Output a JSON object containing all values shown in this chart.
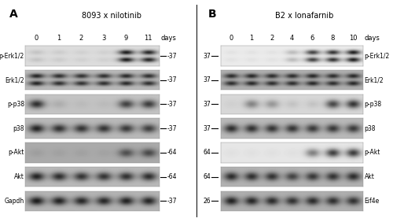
{
  "panel_A": {
    "title": "8093 x nilotinib",
    "label": "A",
    "days": [
      "0",
      "1",
      "2",
      "3",
      "9",
      "11"
    ],
    "blots": [
      {
        "name": "p-Erk1/2",
        "mw": "-37",
        "mw_side": "right",
        "bg": 220,
        "bands": [
          [
            0,
            0.12,
            true
          ],
          [
            1,
            0.08,
            true
          ],
          [
            2,
            0.06,
            true
          ],
          [
            3,
            0.06,
            true
          ],
          [
            4,
            0.95,
            true
          ],
          [
            5,
            0.9,
            true
          ]
        ]
      },
      {
        "name": "Erk1/2",
        "mw": "-37",
        "mw_side": "right",
        "bg": 185,
        "bands": [
          [
            0,
            0.88,
            true
          ],
          [
            1,
            0.82,
            true
          ],
          [
            2,
            0.8,
            true
          ],
          [
            3,
            0.82,
            true
          ],
          [
            4,
            0.85,
            true
          ],
          [
            5,
            0.82,
            true
          ]
        ]
      },
      {
        "name": "p-p38",
        "mw": "-37",
        "mw_side": "right",
        "bg": 195,
        "bands": [
          [
            0,
            0.82,
            false
          ],
          [
            1,
            0.12,
            false
          ],
          [
            2,
            0.05,
            false
          ],
          [
            3,
            0.05,
            false
          ],
          [
            4,
            0.72,
            false
          ],
          [
            5,
            0.75,
            false
          ]
        ]
      },
      {
        "name": "p38",
        "mw": "-37",
        "mw_side": "right",
        "bg": 185,
        "bands": [
          [
            0,
            0.88,
            false
          ],
          [
            1,
            0.8,
            false
          ],
          [
            2,
            0.78,
            false
          ],
          [
            3,
            0.78,
            false
          ],
          [
            4,
            0.75,
            false
          ],
          [
            5,
            0.72,
            false
          ]
        ]
      },
      {
        "name": "p-Akt",
        "mw": "-64",
        "mw_side": "right",
        "bg": 170,
        "bands": [
          [
            0,
            0.08,
            false
          ],
          [
            1,
            0.06,
            false
          ],
          [
            2,
            0.06,
            false
          ],
          [
            3,
            0.05,
            false
          ],
          [
            4,
            0.58,
            false
          ],
          [
            5,
            0.62,
            false
          ]
        ]
      },
      {
        "name": "Akt",
        "mw": "-64",
        "mw_side": "right",
        "bg": 185,
        "bands": [
          [
            0,
            0.88,
            false
          ],
          [
            1,
            0.82,
            false
          ],
          [
            2,
            0.78,
            false
          ],
          [
            3,
            0.78,
            false
          ],
          [
            4,
            0.8,
            false
          ],
          [
            5,
            0.82,
            false
          ]
        ]
      },
      {
        "name": "Gapdh",
        "mw": "-37",
        "mw_side": "right",
        "bg": 180,
        "bands": [
          [
            0,
            0.92,
            false
          ],
          [
            1,
            0.88,
            false
          ],
          [
            2,
            0.85,
            false
          ],
          [
            3,
            0.85,
            false
          ],
          [
            4,
            0.88,
            false
          ],
          [
            5,
            0.86,
            false
          ]
        ]
      }
    ]
  },
  "panel_B": {
    "title": "B2 x lonafarnib",
    "label": "B",
    "days": [
      "0",
      "1",
      "2",
      "4",
      "6",
      "8",
      "10"
    ],
    "blots": [
      {
        "name": "p-Erk1/2",
        "mw": "37",
        "mw_side": "both",
        "bg": 235,
        "bands": [
          [
            0,
            0.04,
            true
          ],
          [
            1,
            0.04,
            true
          ],
          [
            2,
            0.04,
            true
          ],
          [
            3,
            0.22,
            true
          ],
          [
            4,
            0.78,
            true
          ],
          [
            5,
            0.85,
            true
          ],
          [
            6,
            0.95,
            true
          ]
        ]
      },
      {
        "name": "Erk1/2",
        "mw": "37",
        "mw_side": "both",
        "bg": 175,
        "bands": [
          [
            0,
            0.82,
            true
          ],
          [
            1,
            0.85,
            true
          ],
          [
            2,
            0.82,
            true
          ],
          [
            3,
            0.82,
            true
          ],
          [
            4,
            0.85,
            true
          ],
          [
            5,
            0.82,
            true
          ],
          [
            6,
            0.85,
            true
          ]
        ]
      },
      {
        "name": "p-p38",
        "mw": "37",
        "mw_side": "both",
        "bg": 215,
        "bands": [
          [
            0,
            0.04,
            false
          ],
          [
            1,
            0.42,
            false
          ],
          [
            2,
            0.32,
            false
          ],
          [
            3,
            0.1,
            false
          ],
          [
            4,
            0.1,
            false
          ],
          [
            5,
            0.72,
            false
          ],
          [
            6,
            0.82,
            false
          ]
        ]
      },
      {
        "name": "p38",
        "mw": "37",
        "mw_side": "both",
        "bg": 185,
        "bands": [
          [
            0,
            0.82,
            false
          ],
          [
            1,
            0.8,
            false
          ],
          [
            2,
            0.78,
            false
          ],
          [
            3,
            0.78,
            false
          ],
          [
            4,
            0.75,
            false
          ],
          [
            5,
            0.76,
            false
          ],
          [
            6,
            0.75,
            false
          ]
        ]
      },
      {
        "name": "p-Akt",
        "mw": "64",
        "mw_side": "both",
        "bg": 230,
        "bands": [
          [
            0,
            0.03,
            false
          ],
          [
            1,
            0.03,
            false
          ],
          [
            2,
            0.03,
            false
          ],
          [
            3,
            0.03,
            false
          ],
          [
            4,
            0.48,
            false
          ],
          [
            5,
            0.78,
            false
          ],
          [
            6,
            0.8,
            false
          ]
        ]
      },
      {
        "name": "Akt",
        "mw": "64",
        "mw_side": "both",
        "bg": 178,
        "bands": [
          [
            0,
            0.82,
            false
          ],
          [
            1,
            0.8,
            false
          ],
          [
            2,
            0.78,
            false
          ],
          [
            3,
            0.68,
            false
          ],
          [
            4,
            0.75,
            false
          ],
          [
            5,
            0.78,
            false
          ],
          [
            6,
            0.82,
            false
          ]
        ]
      },
      {
        "name": "Eif4e",
        "mw": "26",
        "mw_side": "both",
        "bg": 175,
        "bands": [
          [
            0,
            0.88,
            false
          ],
          [
            1,
            0.85,
            false
          ],
          [
            2,
            0.82,
            false
          ],
          [
            3,
            0.78,
            false
          ],
          [
            4,
            0.82,
            false
          ],
          [
            5,
            0.8,
            false
          ],
          [
            6,
            0.78,
            false
          ]
        ]
      }
    ]
  },
  "fig_width": 5.0,
  "fig_height": 2.82,
  "fig_dpi": 100
}
